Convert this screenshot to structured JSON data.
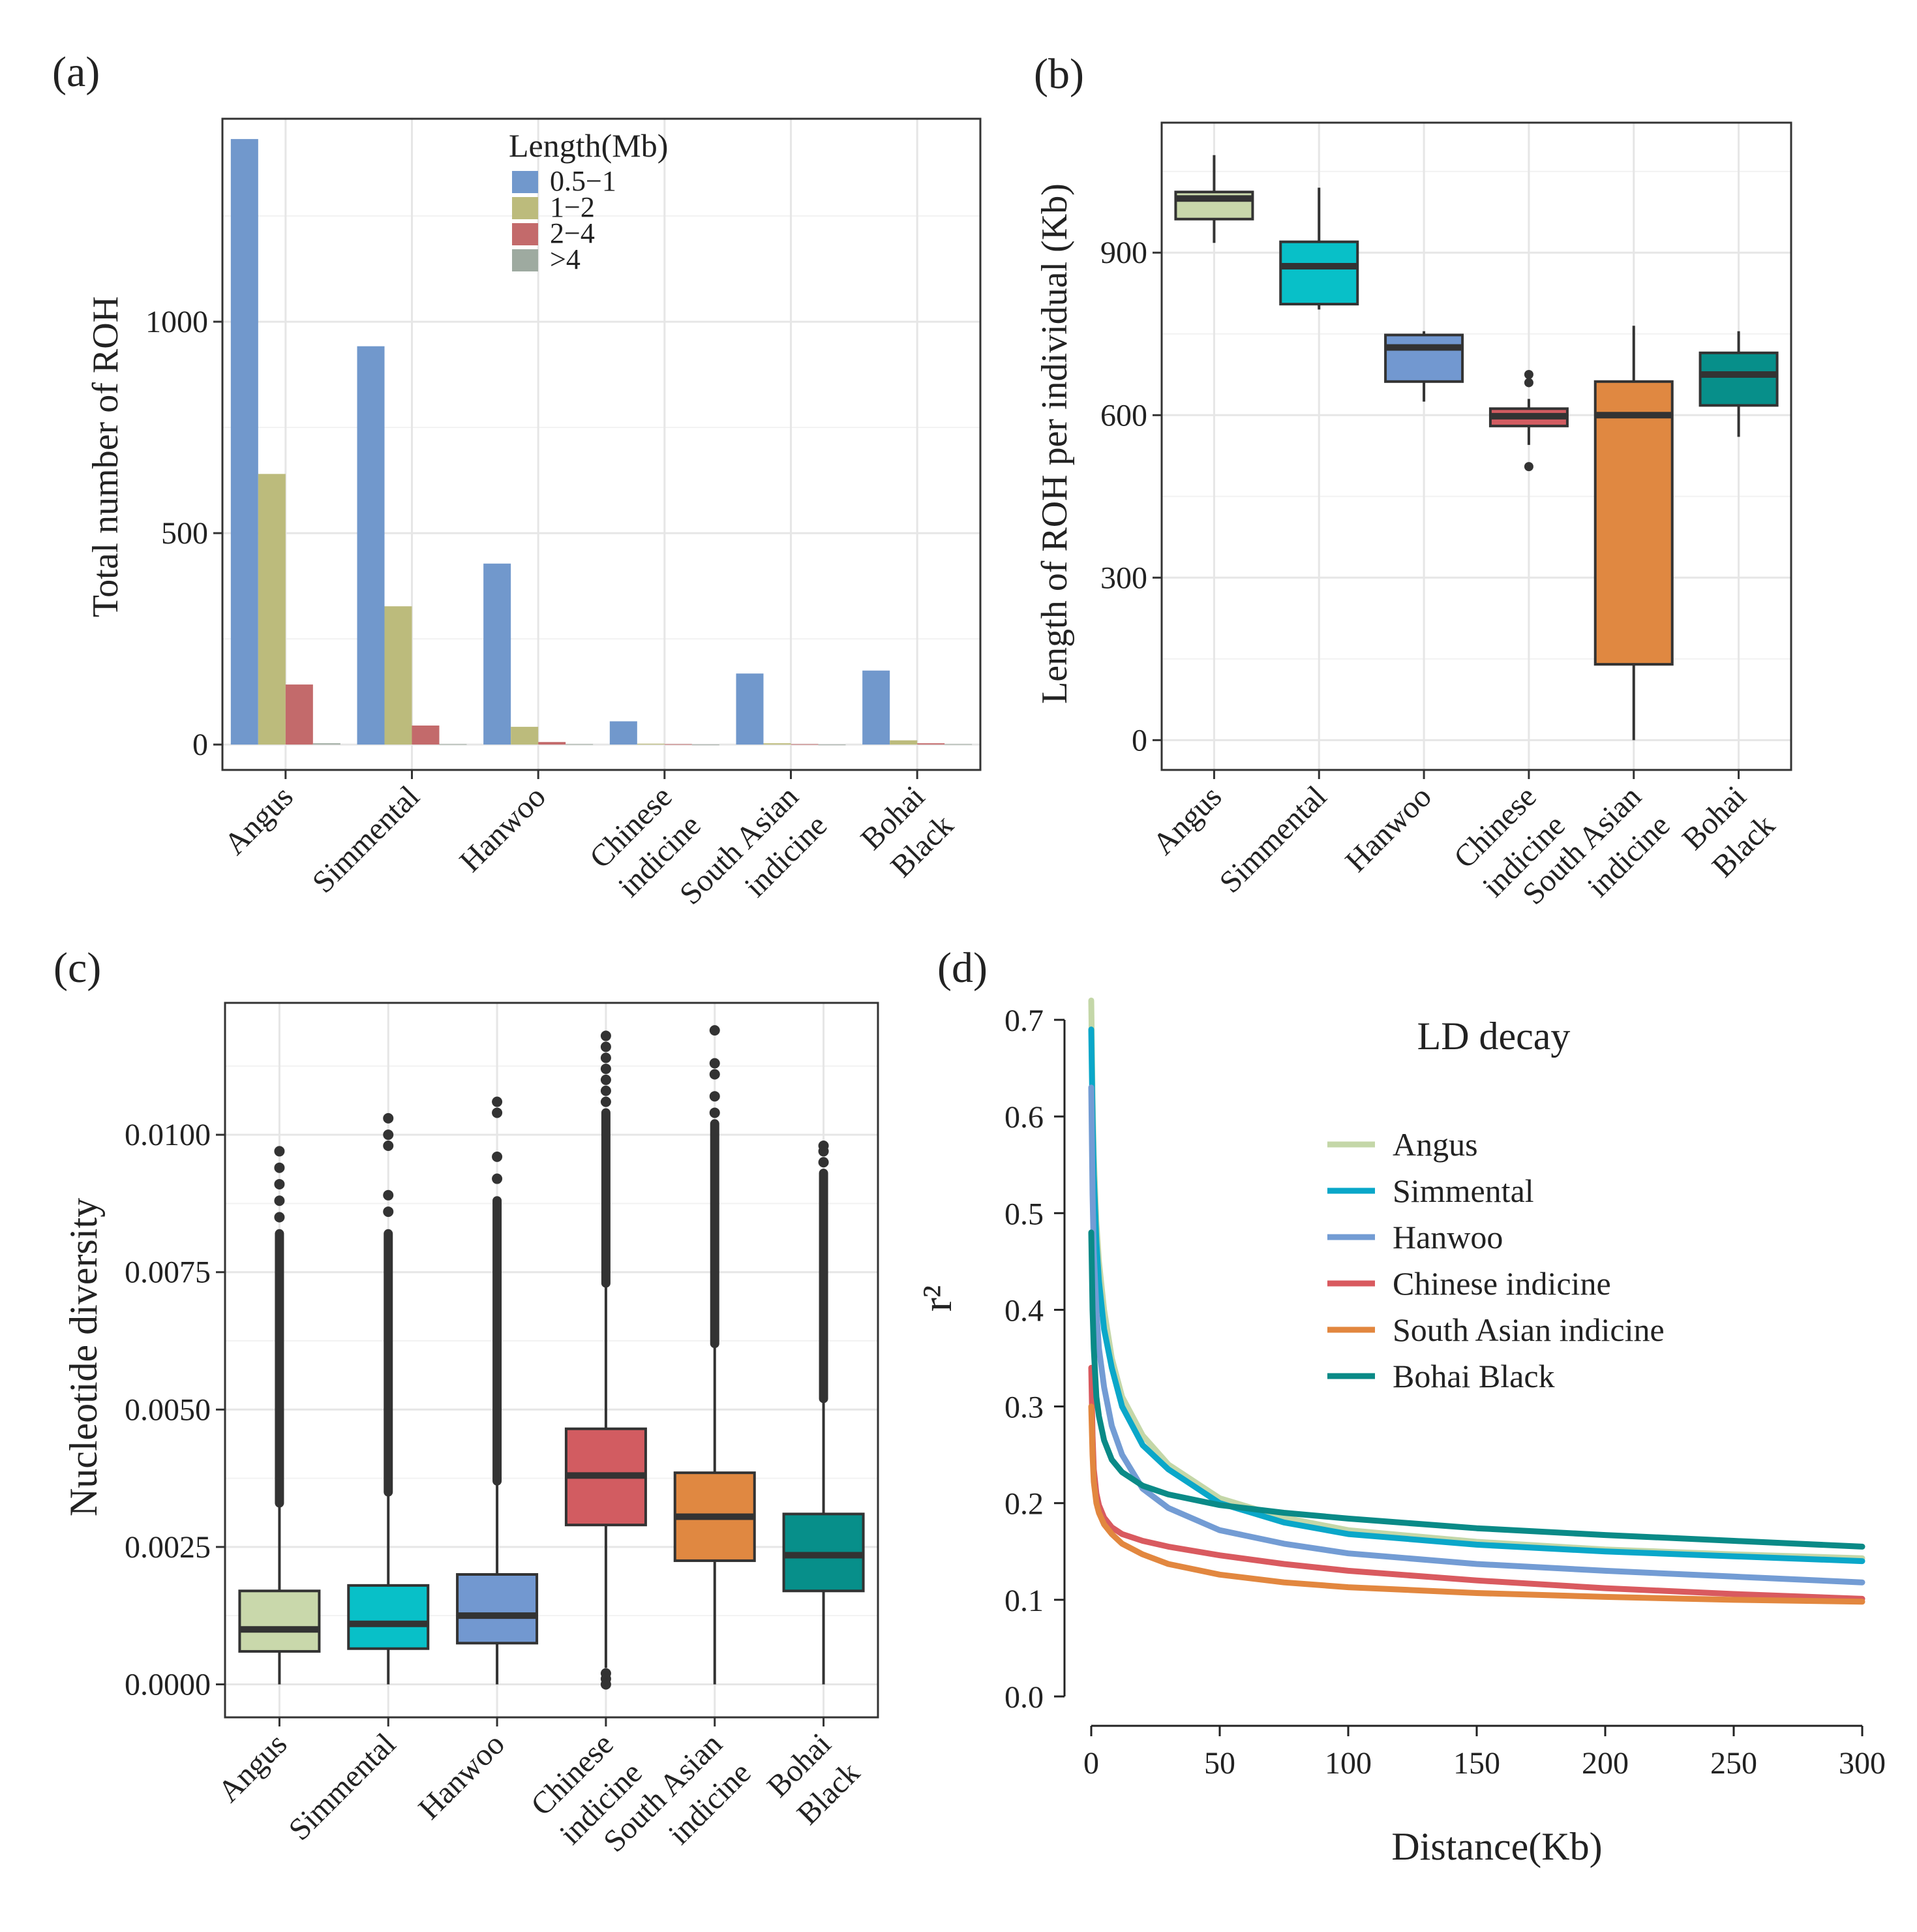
{
  "figure_panels": [
    "(a)",
    "(b)",
    "(c)",
    "(d)"
  ],
  "chart_data": [
    {
      "panel": "(a)",
      "type": "bar",
      "ylabel": "Total number of ROH",
      "xlabel": "",
      "ylim": [
        -60,
        1480
      ],
      "yticks": [
        0,
        500,
        1000
      ],
      "yticks_text": [
        "0",
        "500",
        "1000"
      ],
      "grid": true,
      "legend_position": "top-center",
      "legend_title": "Length(Mb)",
      "categories": [
        [
          "Angus"
        ],
        [
          "Simmental"
        ],
        [
          "Hanwoo"
        ],
        [
          "Chinese",
          "indicine"
        ],
        [
          "South Asian",
          "indicine"
        ],
        [
          "Bohai",
          "Black"
        ]
      ],
      "series": [
        {
          "name": "0.5−1",
          "color": "#7198cc",
          "values": [
            1432,
            942,
            428,
            55,
            168,
            175
          ]
        },
        {
          "name": "1−2",
          "color": "#bcbb7c",
          "values": [
            640,
            327,
            42,
            2,
            3,
            10
          ]
        },
        {
          "name": "2−4",
          "color": "#c36a6b",
          "values": [
            142,
            45,
            6,
            1,
            1,
            3
          ]
        },
        {
          "name": ">4",
          "color": "#9eaaa0",
          "values": [
            3,
            1,
            1,
            0,
            0,
            1
          ]
        }
      ]
    },
    {
      "panel": "(b)",
      "type": "boxplot",
      "ylabel": "Length of ROH per individual (Kb)",
      "xlabel": "",
      "ylim": [
        -55,
        1140
      ],
      "yticks": [
        0,
        300,
        600,
        900
      ],
      "yticks_text": [
        "0",
        "300",
        "600",
        "900"
      ],
      "grid": true,
      "categories": [
        [
          "Angus"
        ],
        [
          "Simmental"
        ],
        [
          "Hanwoo"
        ],
        [
          "Chinese",
          "indicine"
        ],
        [
          "South Asian",
          "indicine"
        ],
        [
          "Bohai",
          "Black"
        ]
      ],
      "boxes": [
        {
          "name": "Angus",
          "color": "#c9d8ab",
          "min": 918,
          "q1": 962,
          "median": 1000,
          "q3": 1012,
          "max": 1080,
          "outliers": []
        },
        {
          "name": "Simmental",
          "color": "#08c0c8",
          "min": 795,
          "q1": 805,
          "median": 875,
          "q3": 920,
          "max": 1020,
          "outliers": []
        },
        {
          "name": "Hanwoo",
          "color": "#7298d0",
          "min": 625,
          "q1": 662,
          "median": 725,
          "q3": 748,
          "max": 755,
          "outliers": []
        },
        {
          "name": "Chinese indicine",
          "color": "#d25c61",
          "min": 545,
          "q1": 580,
          "median": 598,
          "q3": 612,
          "max": 630,
          "outliers": [
            505,
            660,
            675
          ]
        },
        {
          "name": "South Asian indicine",
          "color": "#e08841",
          "min": 0,
          "q1": 140,
          "median": 600,
          "q3": 662,
          "max": 765,
          "outliers": []
        },
        {
          "name": "Bohai Black",
          "color": "#078f8a",
          "min": 560,
          "q1": 618,
          "median": 675,
          "q3": 715,
          "max": 755,
          "outliers": []
        }
      ]
    },
    {
      "panel": "(c)",
      "type": "boxplot",
      "ylabel": "Nucleotide diversity",
      "xlabel": "",
      "ylim": [
        -0.0006,
        0.0124
      ],
      "yticks": [
        0,
        0.0025,
        0.005,
        0.0075,
        0.01
      ],
      "yticks_text": [
        "0.0000",
        "0.0025",
        "0.0050",
        "0.0075",
        "0.0100"
      ],
      "grid": true,
      "categories": [
        [
          "Angus"
        ],
        [
          "Simmental"
        ],
        [
          "Hanwoo"
        ],
        [
          "Chinese",
          "indicine"
        ],
        [
          "South Asian",
          "indicine"
        ],
        [
          "Bohai",
          "Black"
        ]
      ],
      "boxes": [
        {
          "name": "Angus",
          "color": "#c9d8ab",
          "min": 0,
          "q1": 0.0006,
          "median": 0.001,
          "q3": 0.0017,
          "max": 0.0033,
          "outlier_range": [
            0.0033,
            0.0082
          ],
          "outliers": [
            0.0085,
            0.0088,
            0.0091,
            0.0094,
            0.0097
          ]
        },
        {
          "name": "Simmental",
          "color": "#08c0c8",
          "min": 0,
          "q1": 0.00065,
          "median": 0.0011,
          "q3": 0.0018,
          "max": 0.0035,
          "outlier_range": [
            0.0035,
            0.0082
          ],
          "outliers": [
            0.0086,
            0.0089,
            0.0098,
            0.01,
            0.0103
          ]
        },
        {
          "name": "Hanwoo",
          "color": "#7298d0",
          "min": 0,
          "q1": 0.00075,
          "median": 0.00125,
          "q3": 0.002,
          "max": 0.0037,
          "outlier_range": [
            0.0037,
            0.0088
          ],
          "outliers": [
            0.0092,
            0.0096,
            0.0104,
            0.0106
          ]
        },
        {
          "name": "Chinese indicine",
          "color": "#d25c61",
          "min": 0.0003,
          "q1": 0.0029,
          "median": 0.0038,
          "q3": 0.00465,
          "max": 0.0073,
          "outlier_range": [
            0.0073,
            0.0104
          ],
          "outliers": [
            0.0,
            0.0001,
            0.0002,
            0.0106,
            0.0108,
            0.011,
            0.0112,
            0.0114,
            0.0116,
            0.0118
          ]
        },
        {
          "name": "South Asian indicine",
          "color": "#e08841",
          "min": 0,
          "q1": 0.00225,
          "median": 0.00305,
          "q3": 0.00385,
          "max": 0.0062,
          "outlier_range": [
            0.0062,
            0.0102
          ],
          "outliers": [
            0.0104,
            0.0107,
            0.0111,
            0.0113,
            0.0119
          ]
        },
        {
          "name": "Bohai Black",
          "color": "#078f8a",
          "min": 0,
          "q1": 0.0017,
          "median": 0.00235,
          "q3": 0.0031,
          "max": 0.0052,
          "outlier_range": [
            0.0052,
            0.0093
          ],
          "outliers": [
            0.0095,
            0.0097,
            0.0098
          ]
        }
      ]
    },
    {
      "panel": "(d)",
      "type": "line",
      "title": "LD decay",
      "ylabel": "r²",
      "xlabel": "Distance(Kb)",
      "xlim": [
        -12,
        300
      ],
      "ylim": [
        0,
        0.72
      ],
      "xticks": [
        0,
        50,
        100,
        150,
        200,
        250,
        300
      ],
      "xticks_text": [
        "0",
        "50",
        "100",
        "150",
        "200",
        "250",
        "300"
      ],
      "yticks": [
        0,
        0.1,
        0.2,
        0.3,
        0.4,
        0.5,
        0.6,
        0.7
      ],
      "yticks_text": [
        "0.0",
        "0.1",
        "0.2",
        "0.3",
        "0.4",
        "0.5",
        "0.6",
        "0.7"
      ],
      "grid": false,
      "legend_position": "top-right",
      "series": [
        {
          "name": "Angus",
          "color": "#c4d7a8",
          "x": [
            0,
            0.5,
            1,
            2,
            3,
            5,
            8,
            12,
            20,
            30,
            50,
            75,
            100,
            150,
            200,
            250,
            300
          ],
          "y": [
            0.72,
            0.62,
            0.56,
            0.49,
            0.45,
            0.4,
            0.35,
            0.31,
            0.27,
            0.24,
            0.205,
            0.185,
            0.172,
            0.16,
            0.152,
            0.147,
            0.143
          ]
        },
        {
          "name": "Simmental",
          "color": "#0aa7c9",
          "x": [
            0,
            0.5,
            1,
            2,
            3,
            5,
            8,
            12,
            20,
            30,
            50,
            75,
            100,
            150,
            200,
            250,
            300
          ],
          "y": [
            0.69,
            0.6,
            0.54,
            0.47,
            0.43,
            0.38,
            0.34,
            0.3,
            0.26,
            0.235,
            0.2,
            0.18,
            0.168,
            0.157,
            0.15,
            0.145,
            0.14
          ]
        },
        {
          "name": "Hanwoo",
          "color": "#739cd4",
          "x": [
            0,
            0.5,
            1,
            2,
            3,
            5,
            8,
            12,
            20,
            30,
            50,
            75,
            100,
            150,
            200,
            250,
            300
          ],
          "y": [
            0.63,
            0.52,
            0.46,
            0.4,
            0.36,
            0.32,
            0.28,
            0.25,
            0.215,
            0.195,
            0.172,
            0.158,
            0.148,
            0.137,
            0.13,
            0.124,
            0.118
          ]
        },
        {
          "name": "Chinese indicine",
          "color": "#d95a5f",
          "x": [
            0,
            0.5,
            1,
            2,
            3,
            5,
            8,
            12,
            20,
            30,
            50,
            75,
            100,
            150,
            200,
            250,
            300
          ],
          "y": [
            0.34,
            0.27,
            0.235,
            0.21,
            0.198,
            0.185,
            0.175,
            0.168,
            0.161,
            0.155,
            0.146,
            0.137,
            0.13,
            0.12,
            0.112,
            0.106,
            0.101
          ]
        },
        {
          "name": "South Asian indicine",
          "color": "#e2873f",
          "x": [
            0,
            0.5,
            1,
            2,
            3,
            5,
            8,
            12,
            20,
            30,
            50,
            75,
            100,
            150,
            200,
            250,
            300
          ],
          "y": [
            0.3,
            0.25,
            0.222,
            0.2,
            0.19,
            0.178,
            0.168,
            0.158,
            0.147,
            0.137,
            0.126,
            0.118,
            0.113,
            0.107,
            0.103,
            0.1,
            0.098
          ]
        },
        {
          "name": "Bohai Black",
          "color": "#0a8a87",
          "x": [
            0,
            0.5,
            1,
            2,
            3,
            5,
            8,
            12,
            20,
            30,
            50,
            75,
            100,
            150,
            200,
            250,
            300
          ],
          "y": [
            0.48,
            0.4,
            0.36,
            0.31,
            0.29,
            0.265,
            0.245,
            0.232,
            0.218,
            0.209,
            0.198,
            0.19,
            0.184,
            0.174,
            0.167,
            0.161,
            0.155
          ]
        }
      ]
    }
  ]
}
